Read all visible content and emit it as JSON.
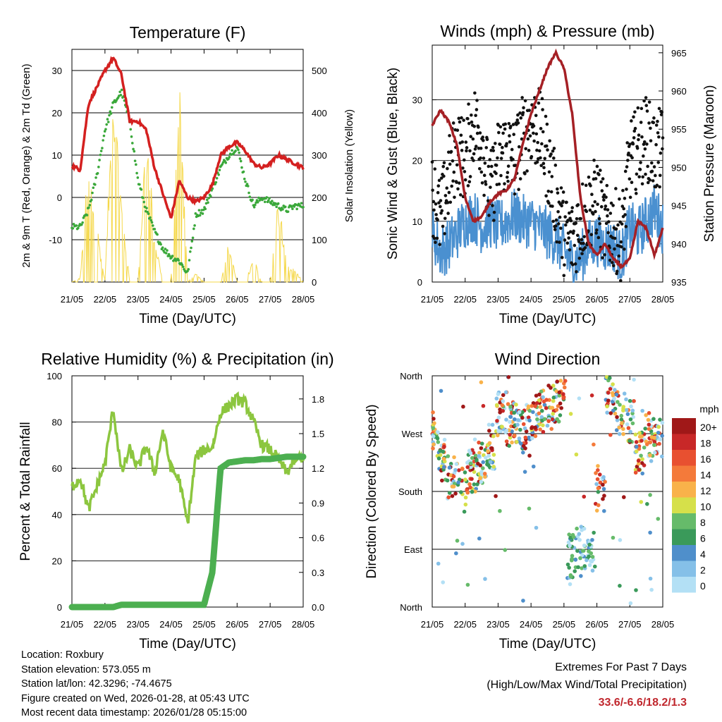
{
  "charts": {
    "temperature": {
      "title": "Temperature (F)",
      "xlabel": "Time (Day/UTC)",
      "ylabel_left": "2m & 9m T (Red, Orange) & 2m Td (Green)",
      "ylabel_right": "Solar Insolation (Yellow)",
      "x_ticks": [
        "21/05",
        "22/05",
        "23/05",
        "24/05",
        "25/05",
        "26/05",
        "27/05",
        "28/05"
      ],
      "y_left_ticks": [
        "30",
        "20",
        "10",
        "0",
        "-10"
      ],
      "y_right_ticks": [
        "500",
        "400",
        "300",
        "200",
        "100",
        "0"
      ]
    },
    "winds": {
      "title": "Winds (mph) & Pressure (mb)",
      "xlabel": "Time (Day/UTC)",
      "ylabel_left": "Sonic Wind & Gust (Blue, Black)",
      "ylabel_right": "Station Pressure (Maroon)",
      "x_ticks": [
        "21/05",
        "22/05",
        "23/05",
        "24/05",
        "25/05",
        "26/05",
        "27/05",
        "28/05"
      ],
      "y_left_ticks": [
        "30",
        "20",
        "10",
        "0"
      ],
      "y_right_ticks": [
        "965",
        "960",
        "955",
        "950",
        "945",
        "940",
        "935"
      ]
    },
    "humidity": {
      "title": "Relative Humidity (%) & Precipitation (in)",
      "xlabel": "Time (Day/UTC)",
      "ylabel_left": "Percent & Total Rainfall",
      "x_ticks": [
        "21/05",
        "22/05",
        "23/05",
        "24/05",
        "25/05",
        "26/05",
        "27/05",
        "28/05"
      ],
      "y_left_ticks": [
        "100",
        "80",
        "60",
        "40",
        "20",
        "0"
      ],
      "y_right_ticks": [
        "1.8",
        "1.5",
        "1.2",
        "0.9",
        "0.6",
        "0.3",
        "0.0"
      ]
    },
    "direction": {
      "title": "Wind Direction",
      "xlabel": "Time (Day/UTC)",
      "ylabel_left": "Direction (Colored By Speed)",
      "x_ticks": [
        "21/05",
        "22/05",
        "23/05",
        "24/05",
        "25/05",
        "26/05",
        "27/05",
        "28/05"
      ],
      "y_left_ticks": [
        "North",
        "West",
        "South",
        "East",
        "North"
      ],
      "legend_title": "mph",
      "legend_labels": [
        "20+",
        "18",
        "16",
        "14",
        "12",
        "10",
        "8",
        "6",
        "4",
        "2",
        "0"
      ]
    }
  },
  "chart_data": [
    {
      "type": "line",
      "title": "Temperature (F)",
      "x": [
        0,
        0.25,
        0.5,
        0.75,
        1.0,
        1.25,
        1.5,
        1.75,
        2.0,
        2.25,
        2.5,
        2.75,
        3.0,
        3.25,
        3.5,
        3.75,
        4.0,
        4.25,
        4.5,
        4.75,
        5.0,
        5.25,
        5.5,
        5.75,
        6.0,
        6.25,
        6.5,
        6.75,
        7.0
      ],
      "xlim": [
        0,
        7
      ],
      "ylim": [
        -20,
        35
      ],
      "y2lim": [
        0,
        550
      ],
      "series": [
        {
          "name": "2m T",
          "color": "#d42020",
          "axis": "left",
          "values": [
            7.5,
            6.5,
            22,
            26,
            30,
            33,
            29,
            18,
            18,
            16,
            7,
            1,
            -5,
            4,
            0,
            -1,
            0,
            3,
            10,
            12,
            13,
            11,
            8,
            7,
            8,
            10,
            9,
            8,
            7
          ]
        },
        {
          "name": "Td",
          "color": "#3aa83a",
          "axis": "left",
          "values": [
            -7,
            -7,
            -3,
            5,
            16,
            22,
            25,
            18,
            4,
            -3,
            -8,
            -12,
            -14,
            -15,
            -18,
            -4,
            -3,
            2,
            7,
            10,
            12,
            4,
            -2,
            0,
            -1,
            -2,
            -3,
            -2,
            -2
          ]
        },
        {
          "name": "Solar",
          "color": "#f5d84a",
          "axis": "right",
          "values": [
            0,
            10,
            300,
            150,
            0,
            520,
            200,
            0,
            0,
            400,
            120,
            0,
            0,
            520,
            0,
            20,
            0,
            0,
            0,
            100,
            0,
            0,
            60,
            0,
            0,
            220,
            40,
            30,
            0
          ]
        }
      ]
    },
    {
      "type": "line",
      "title": "Winds (mph) & Pressure (mb)",
      "x": [
        0,
        0.25,
        0.5,
        0.75,
        1.0,
        1.25,
        1.5,
        1.75,
        2.0,
        2.25,
        2.5,
        2.75,
        3.0,
        3.25,
        3.5,
        3.75,
        4.0,
        4.25,
        4.5,
        4.75,
        5.0,
        5.25,
        5.5,
        5.75,
        6.0,
        6.25,
        6.5,
        6.75,
        7.0
      ],
      "xlim": [
        0,
        7
      ],
      "ylim": [
        0,
        39
      ],
      "y2lim": [
        935,
        966
      ],
      "series": [
        {
          "name": "Wind",
          "color": "#4a90d0",
          "axis": "left",
          "values": [
            8,
            5,
            6,
            8,
            10,
            11,
            9,
            10,
            9,
            10,
            11,
            10,
            10,
            9,
            8,
            7,
            5,
            3,
            4,
            6,
            7,
            6,
            6,
            4,
            9,
            8,
            10,
            12,
            9
          ]
        },
        {
          "name": "Gust",
          "color": "#111111",
          "axis": "left",
          "values": [
            15,
            10,
            17,
            22,
            20,
            26,
            24,
            14,
            20,
            22,
            20,
            24,
            26,
            25,
            20,
            14,
            8,
            7,
            10,
            12,
            14,
            9,
            9,
            7,
            20,
            22,
            24,
            21,
            22
          ]
        },
        {
          "name": "Pressure",
          "color": "#a52025",
          "axis": "right",
          "values": [
            955.5,
            957.5,
            956,
            953,
            946,
            943,
            943.5,
            945.5,
            946.5,
            947,
            948.5,
            953,
            957,
            960,
            963,
            965,
            963,
            957,
            946,
            940,
            938.5,
            940,
            938,
            937,
            938,
            943,
            942,
            938.5,
            942
          ]
        }
      ]
    },
    {
      "type": "line",
      "title": "Relative Humidity (%) & Precipitation (in)",
      "x": [
        0,
        0.25,
        0.5,
        0.75,
        1.0,
        1.25,
        1.5,
        1.75,
        2.0,
        2.25,
        2.5,
        2.75,
        3.0,
        3.25,
        3.5,
        3.75,
        4.0,
        4.25,
        4.5,
        4.75,
        5.0,
        5.25,
        5.5,
        5.75,
        6.0,
        6.25,
        6.5,
        6.75,
        7.0
      ],
      "xlim": [
        0,
        7
      ],
      "ylim": [
        0,
        100
      ],
      "y2lim": [
        0,
        2.0
      ],
      "series": [
        {
          "name": "RH",
          "color": "#8cc63f",
          "axis": "left",
          "values": [
            52,
            56,
            42,
            52,
            62,
            86,
            58,
            68,
            60,
            70,
            58,
            76,
            60,
            55,
            36,
            65,
            68,
            69,
            84,
            87,
            90,
            88,
            80,
            70,
            68,
            64,
            58,
            64,
            65
          ]
        },
        {
          "name": "Rain",
          "color": "#4caf50",
          "axis": "right",
          "values": [
            0,
            0,
            0,
            0,
            0,
            0,
            0.02,
            0.02,
            0.02,
            0.02,
            0.02,
            0.02,
            0.02,
            0.02,
            0.02,
            0.02,
            0.02,
            0.3,
            1.2,
            1.25,
            1.26,
            1.27,
            1.27,
            1.28,
            1.28,
            1.29,
            1.3,
            1.3,
            1.3
          ]
        }
      ]
    },
    {
      "type": "scatter",
      "title": "Wind Direction",
      "ylim": [
        0,
        360
      ],
      "y_categories": [
        "North",
        "East",
        "South",
        "West",
        "North"
      ],
      "colorscale": [
        "#b3e0f5",
        "#85c0e8",
        "#4f8fcb",
        "#3a9a5a",
        "#66bb6a",
        "#d6e04a",
        "#f9b24a",
        "#f47a3a",
        "#e85030",
        "#c82828",
        "#a01818"
      ],
      "series": [
        {
          "name": "direction",
          "x": [
            0.1,
            0.3,
            0.6,
            0.9,
            1.2,
            1.5,
            1.8,
            2.1,
            2.4,
            2.7,
            3.0,
            3.3,
            3.6,
            3.9,
            4.2,
            4.5,
            4.8,
            5.1,
            5.4,
            5.7,
            6.0,
            6.3,
            6.6,
            6.9
          ],
          "values": [
            270,
            230,
            200,
            190,
            210,
            225,
            250,
            300,
            285,
            275,
            295,
            305,
            310,
            320,
            80,
            95,
            90,
            180,
            335,
            300,
            290,
            240,
            270,
            265
          ]
        }
      ]
    }
  ],
  "info": {
    "location": "Location: Roxbury",
    "elevation": "Station elevation: 573.055 m",
    "latlon": "Station lat/lon: 42.3296; -74.4675",
    "created": "Figure created on Wed, 2026-01-28, at 05:43 UTC",
    "recent": "Most recent data timestamp: 2026/01/28 05:15:00"
  },
  "extremes": {
    "line1": "Extremes For Past 7 Days",
    "line2": "(High/Low/Max Wind/Total Precipitation)",
    "values": "33.6/-6.6/18.2/1.3"
  }
}
